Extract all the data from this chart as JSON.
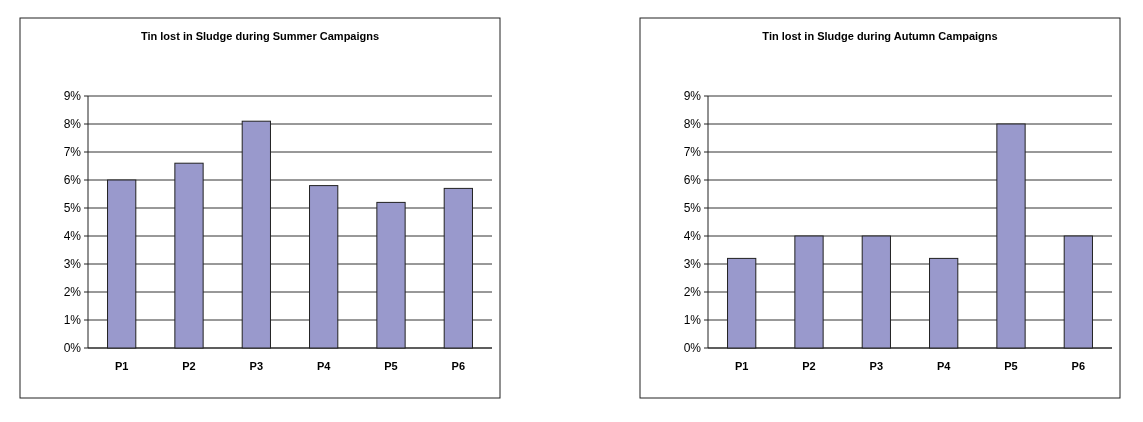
{
  "chart_data": [
    {
      "type": "bar",
      "title": "Tin lost in Sludge during Summer Campaigns",
      "categories": [
        "P1",
        "P2",
        "P3",
        "P4",
        "P5",
        "P6"
      ],
      "values": [
        6.0,
        6.6,
        8.1,
        5.8,
        5.2,
        5.7
      ],
      "color": "#9999cc",
      "ylim": [
        0,
        9
      ],
      "yticks": [
        {
          "value": 0,
          "label": "0%"
        },
        {
          "value": 1,
          "label": "1%"
        },
        {
          "value": 2,
          "label": "2%"
        },
        {
          "value": 3,
          "label": "3%"
        },
        {
          "value": 4,
          "label": "4%"
        },
        {
          "value": 5,
          "label": "5%"
        },
        {
          "value": 6,
          "label": "6%"
        },
        {
          "value": 7,
          "label": "7%"
        },
        {
          "value": 8,
          "label": "8%"
        },
        {
          "value": 9,
          "label": "9%"
        }
      ],
      "grid": "y"
    },
    {
      "type": "bar",
      "title": "Tin lost in Sludge during Autumn Campaigns",
      "categories": [
        "P1",
        "P2",
        "P3",
        "P4",
        "P5",
        "P6"
      ],
      "values": [
        3.2,
        4.0,
        4.0,
        3.2,
        8.0,
        4.0
      ],
      "color": "#9999cc",
      "ylim": [
        0,
        9
      ],
      "yticks": [
        {
          "value": 0,
          "label": "0%"
        },
        {
          "value": 1,
          "label": "1%"
        },
        {
          "value": 2,
          "label": "2%"
        },
        {
          "value": 3,
          "label": "3%"
        },
        {
          "value": 4,
          "label": "4%"
        },
        {
          "value": 5,
          "label": "5%"
        },
        {
          "value": 6,
          "label": "6%"
        },
        {
          "value": 7,
          "label": "7%"
        },
        {
          "value": 8,
          "label": "8%"
        },
        {
          "value": 9,
          "label": "9%"
        }
      ],
      "grid": "y"
    }
  ]
}
